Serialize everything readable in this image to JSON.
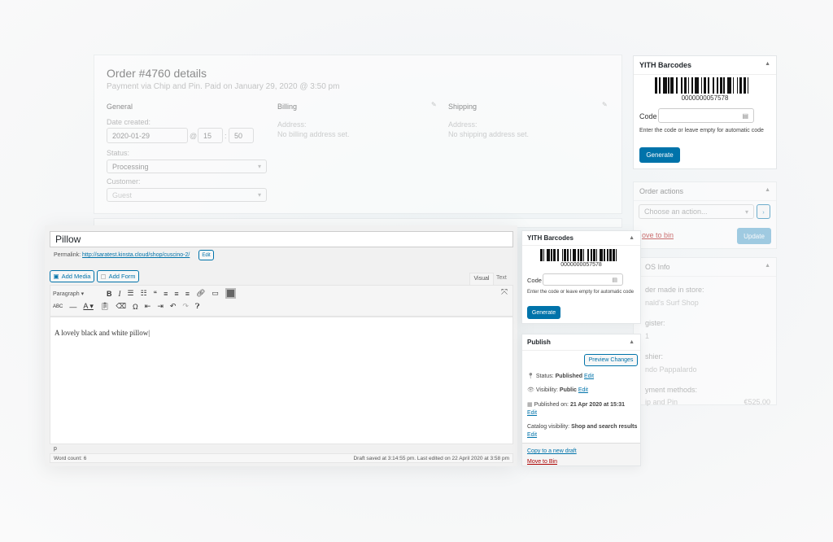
{
  "order": {
    "title": "Order #4760 details",
    "subtitle": "Payment via Chip and Pin. Paid on January 29, 2020 @ 3:50 pm",
    "general": {
      "heading": "General",
      "date_label": "Date created:",
      "date": "2020-01-29",
      "at": "@",
      "hour": "15",
      "sep": ":",
      "minute": "50",
      "status_label": "Status:",
      "status": "Processing",
      "customer_label": "Customer:",
      "customer": "Guest"
    },
    "billing": {
      "heading": "Billing",
      "address_label": "Address:",
      "address": "No billing address set."
    },
    "shipping": {
      "heading": "Shipping",
      "address_label": "Address:",
      "address": "No shipping address set."
    }
  },
  "barcode_back": {
    "title": "YITH Barcodes",
    "number": "0000000057578",
    "code_label": "Code",
    "hint": "Enter the code or leave empty for automatic code",
    "generate": "Generate"
  },
  "order_actions": {
    "title": "Order actions",
    "select": "Choose an action...",
    "go": "›",
    "move_to_bin": "ove to bin",
    "update": "Update"
  },
  "pos": {
    "title": "OS Info",
    "made_label": "der made in store:",
    "store": "nald's Surf Shop",
    "register_label": "gister:",
    "register": "1",
    "cashier_label": "shier:",
    "cashier": "ndo Pappalardo",
    "payment_label": "yment methods:",
    "payment": "ip and Pin",
    "amount": "€525.00"
  },
  "editor": {
    "title": "Pillow",
    "permalink_label": "Permalink:",
    "permalink": "http://saratest.kinsta.cloud/shop/cuscino-2/",
    "edit": "Edit",
    "add_media": "Add Media",
    "add_form": "Add Form",
    "tab_visual": "Visual",
    "tab_text": "Text",
    "format": "Paragraph",
    "content": "A lovely black and white pillow",
    "path": "p",
    "word_count": "Word count: 6",
    "draft_status": "Draft saved at 3:14:55 pm. Last edited on 22 April 2020 at 3:58 pm"
  },
  "barcode_front": {
    "title": "YITH Barcodes",
    "number": "0000000057578",
    "code_label": "Code",
    "hint": "Enter the code or leave empty for automatic code",
    "generate": "Generate"
  },
  "publish": {
    "title": "Publish",
    "preview": "Preview Changes",
    "status_label": "Status:",
    "status": "Published",
    "visibility_label": "Visibility:",
    "visibility": "Public",
    "published_label": "Published on:",
    "published": "21 Apr 2020 at 15:31",
    "catalog_label": "Catalog visibility:",
    "catalog": "Shop and search results",
    "edit": "Edit",
    "copy": "Copy to a new draft",
    "bin": "Move to Bin"
  },
  "colors": {
    "primary": "#0073aa",
    "danger": "#a00"
  }
}
